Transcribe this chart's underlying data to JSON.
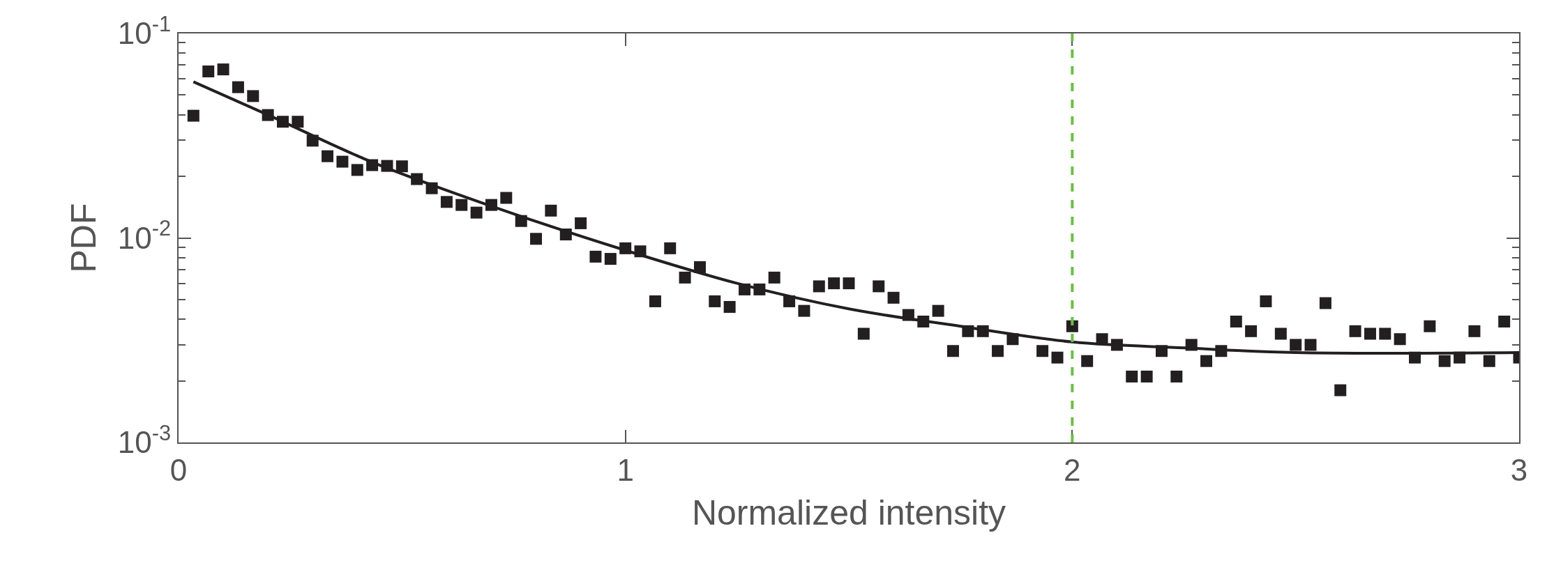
{
  "chart_data": {
    "type": "scatter",
    "xlabel": "Normalized intensity",
    "ylabel": "PDF",
    "log": "y",
    "xlim": [
      0,
      3
    ],
    "xticks": [
      0,
      1,
      2,
      3
    ],
    "ylim": [
      0.001,
      0.1
    ],
    "yticks": [
      {
        "value": 0.001,
        "label": "10$^{-3}$"
      },
      {
        "value": 0.01,
        "label": "10$^{-2}$"
      },
      {
        "value": 0.1,
        "label": "10$^{-1}$"
      }
    ],
    "series": [
      {
        "marker": "square",
        "color": "#231f20",
        "x": [
          0.0333,
          0.0667,
          0.1,
          0.1333,
          0.1667,
          0.2,
          0.2333,
          0.2667,
          0.3,
          0.3333,
          0.3667,
          0.4,
          0.4333,
          0.4667,
          0.5,
          0.5333,
          0.5667,
          0.6,
          0.6333,
          0.6667,
          0.7,
          0.7333,
          0.7667,
          0.8,
          0.8333,
          0.8667,
          0.9,
          0.9333,
          0.9667,
          1.0,
          1.0333,
          1.0667,
          1.1,
          1.1333,
          1.1667,
          1.2,
          1.2333,
          1.2667,
          1.3,
          1.3333,
          1.3667,
          1.4,
          1.4333,
          1.4667,
          1.5,
          1.5333,
          1.5667,
          1.6,
          1.6333,
          1.6667,
          1.7,
          1.7333,
          1.7667,
          1.8,
          1.8333,
          1.8667,
          1.9,
          1.9333,
          1.9667,
          2.0,
          2.0333,
          2.0667,
          2.1,
          2.1333,
          2.1667,
          2.2,
          2.2333,
          2.2667,
          2.3,
          2.3333,
          2.3667,
          2.4,
          2.4333,
          2.4667,
          2.5,
          2.5333,
          2.5667,
          2.6,
          2.6333,
          2.6667,
          2.7,
          2.7333,
          2.7667,
          2.8,
          2.8333,
          2.8667,
          2.9,
          2.9333,
          2.9667,
          3.0
        ],
        "values": [
          0.0396,
          0.0652,
          0.0667,
          0.0546,
          0.0494,
          0.0399,
          0.037,
          0.037,
          0.0299,
          0.0251,
          0.0236,
          0.0215,
          0.0227,
          0.0225,
          0.0224,
          0.0194,
          0.0175,
          0.015,
          0.0145,
          0.0133,
          0.0145,
          0.0157,
          0.0121,
          0.0099,
          0.0136,
          0.0104,
          0.0118,
          0.0081,
          0.0079,
          0.0089,
          0.0086,
          0.0049,
          0.0089,
          0.0064,
          0.0072,
          0.0049,
          0.0046,
          0.0056,
          0.0056,
          0.0064,
          0.0049,
          0.0044,
          0.0058,
          0.006,
          0.006,
          0.0034,
          0.0058,
          0.0051,
          0.0042,
          0.0039,
          0.0044,
          0.0028,
          0.0035,
          0.0035,
          0.0028,
          0.0032,
          null,
          0.0028,
          0.0026,
          0.0037,
          0.0025,
          0.0032,
          0.003,
          0.0021,
          0.0021,
          0.0028,
          0.0021,
          0.003,
          0.0025,
          0.0028,
          0.0039,
          0.0035,
          0.0049,
          0.0034,
          0.003,
          0.003,
          0.0048,
          0.0018,
          0.0035,
          0.0034,
          0.0034,
          0.0032,
          0.0026,
          0.0037,
          0.0025,
          0.0026,
          0.0035,
          0.0025,
          0.0039,
          0.0026
        ]
      },
      {
        "type": "line",
        "marker": "none",
        "line_style": "solid",
        "color": "#231f20",
        "x": [
          0.0333,
          0.2,
          0.435,
          0.7,
          1.0,
          1.25,
          1.5,
          1.75,
          2.0,
          2.25,
          2.5,
          3.0
        ],
        "values": [
          0.058,
          0.04,
          0.0234,
          0.0143,
          0.0087,
          0.006,
          0.0045,
          0.0037,
          0.0031,
          0.0029,
          0.00275,
          0.00275
        ]
      }
    ],
    "ref_lines": [
      {
        "axis": "x",
        "value": 2,
        "color": "#6abf45",
        "line_style": "dashed"
      }
    ]
  }
}
